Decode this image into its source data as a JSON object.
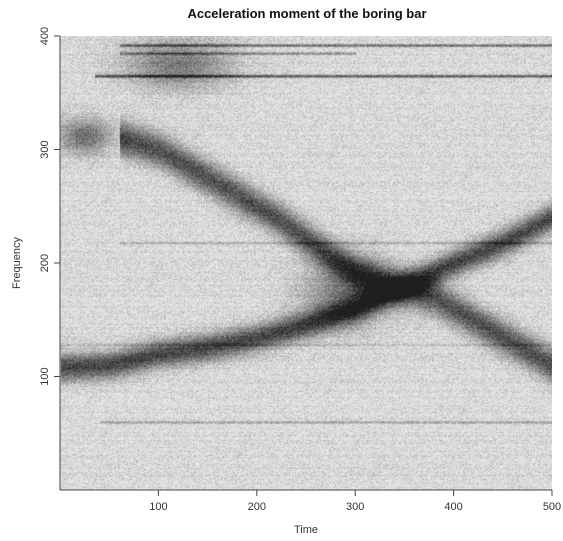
{
  "chart_data": {
    "type": "heatmap",
    "title": "Acceleration moment of the boring bar",
    "xlabel": "Time",
    "ylabel": "Frequency",
    "xlim": [
      0,
      500
    ],
    "ylim": [
      0,
      400
    ],
    "xticks": [
      100,
      200,
      300,
      400,
      500
    ],
    "yticks": [
      100,
      200,
      300,
      400
    ],
    "colormap": "grayscale (light = low, dark = high)",
    "colors": {
      "low": "#e6e6e6",
      "high": "#1e1e1e",
      "axis": "#444444"
    },
    "features": [
      {
        "kind": "curve",
        "points": [
          [
            0,
            108
          ],
          [
            50,
            110
          ],
          [
            100,
            120
          ],
          [
            150,
            126
          ],
          [
            200,
            134
          ],
          [
            250,
            146
          ],
          [
            300,
            160
          ],
          [
            350,
            180
          ],
          [
            400,
            200
          ],
          [
            450,
            218
          ],
          [
            500,
            240
          ]
        ],
        "intensity": 0.75,
        "thickness": 12
      },
      {
        "kind": "curve",
        "points": [
          [
            60,
            310
          ],
          [
            100,
            300
          ],
          [
            140,
            280
          ],
          [
            180,
            260
          ],
          [
            220,
            240
          ],
          [
            260,
            215
          ],
          [
            300,
            192
          ],
          [
            340,
            180
          ],
          [
            380,
            170
          ],
          [
            420,
            150
          ],
          [
            460,
            130
          ],
          [
            500,
            110
          ]
        ],
        "intensity": 0.7,
        "thickness": 15
      },
      {
        "kind": "blob",
        "center": [
          25,
          312
        ],
        "rx": 28,
        "ry": 16,
        "intensity": 0.55
      },
      {
        "kind": "blob",
        "center": [
          120,
          375
        ],
        "rx": 55,
        "ry": 22,
        "intensity": 0.5
      },
      {
        "kind": "blob",
        "center": [
          290,
          175
        ],
        "rx": 45,
        "ry": 30,
        "intensity": 0.45
      },
      {
        "kind": "hline",
        "y": 365,
        "x": [
          35,
          500
        ],
        "intensity": 0.7
      },
      {
        "kind": "hline",
        "y": 392,
        "x": [
          60,
          500
        ],
        "intensity": 0.55
      },
      {
        "kind": "hline",
        "y": 385,
        "x": [
          60,
          300
        ],
        "intensity": 0.4
      },
      {
        "kind": "hline",
        "y": 60,
        "x": [
          40,
          500
        ],
        "intensity": 0.3
      },
      {
        "kind": "hline",
        "y": 218,
        "x": [
          60,
          500
        ],
        "intensity": 0.2
      },
      {
        "kind": "hline",
        "y": 128,
        "x": [
          0,
          500
        ],
        "intensity": 0.18
      }
    ]
  }
}
